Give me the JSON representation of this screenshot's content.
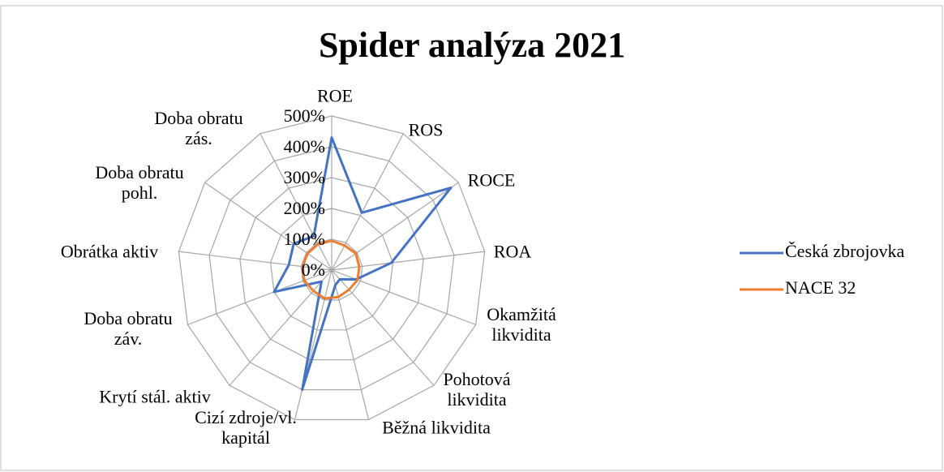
{
  "chart_data": {
    "type": "radar",
    "title": "Spider analýza 2021",
    "categories": [
      "ROE",
      "ROS",
      "ROCE",
      "ROA",
      "Okamžitá likvidita",
      "Pohotová likvidita",
      "Běžná likvidita",
      "Cizí zdroje/vl. kapitál",
      "Krytí stál. aktiv",
      "Doba obratu záv.",
      "Obrátka aktiv",
      "Doba obratu pohl.",
      "Doba obratu zás."
    ],
    "series": [
      {
        "name": "Česká zbrojovka",
        "color": "#4472c4",
        "values": [
          430,
          210,
          470,
          195,
          85,
          40,
          50,
          400,
          50,
          200,
          140,
          150,
          125
        ]
      },
      {
        "name": "NACE 32",
        "color": "#ed7d31",
        "values": [
          95,
          90,
          95,
          90,
          90,
          85,
          90,
          95,
          90,
          95,
          95,
          95,
          95
        ]
      }
    ],
    "ylim": [
      0,
      500
    ],
    "yticks": [
      {
        "value": 0,
        "label": "0%"
      },
      {
        "value": 100,
        "label": "100%"
      },
      {
        "value": 200,
        "label": "200%"
      },
      {
        "value": 300,
        "label": "300%"
      },
      {
        "value": 400,
        "label": "400%"
      },
      {
        "value": 500,
        "label": "500%"
      }
    ],
    "grid": true,
    "legend": "right"
  }
}
